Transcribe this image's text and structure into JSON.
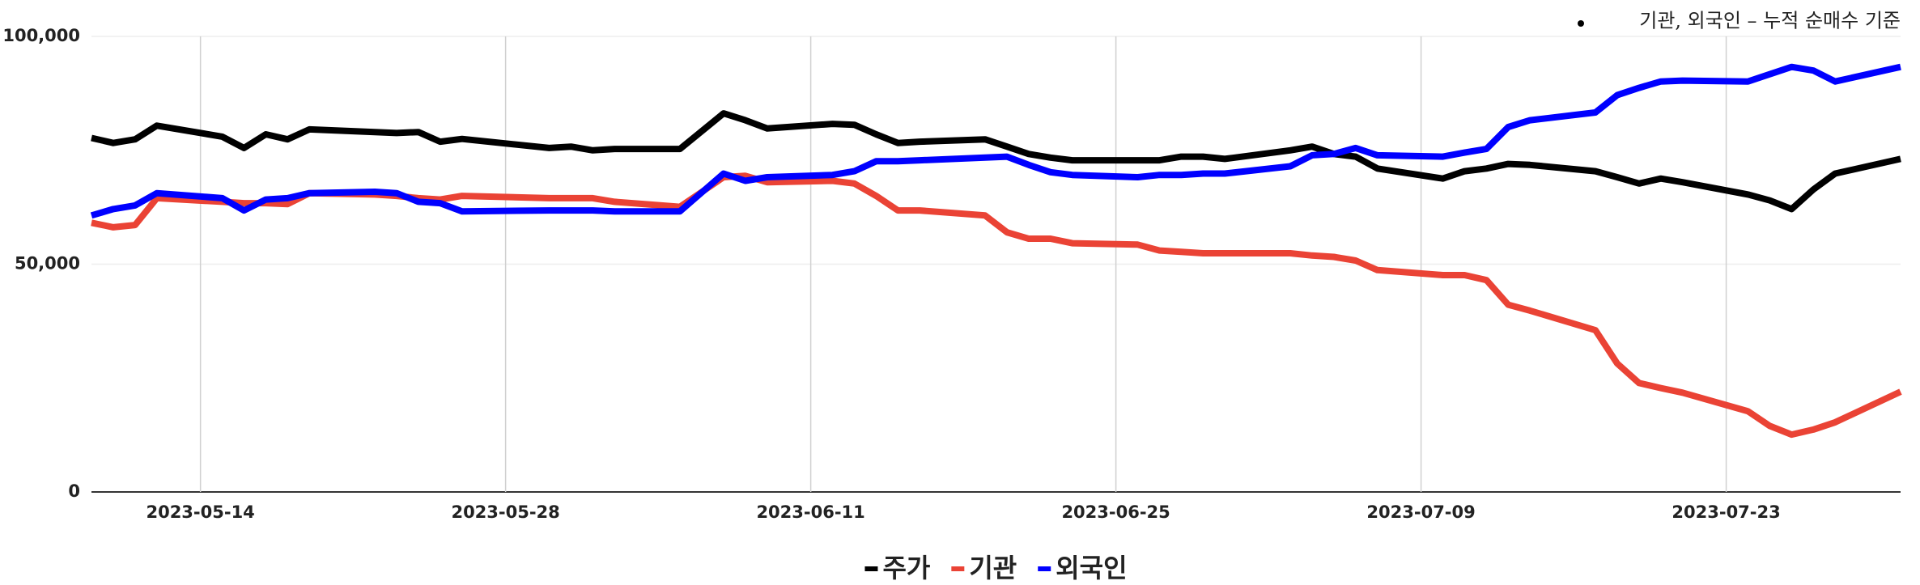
{
  "chart_data": {
    "type": "line",
    "annotation": "기관, 외국인 – 누적 순매수 기준",
    "x": [
      "2023-05-09",
      "2023-05-10",
      "2023-05-11",
      "2023-05-12",
      "2023-05-15",
      "2023-05-16",
      "2023-05-17",
      "2023-05-18",
      "2023-05-19",
      "2023-05-22",
      "2023-05-23",
      "2023-05-24",
      "2023-05-25",
      "2023-05-26",
      "2023-05-30",
      "2023-05-31",
      "2023-06-01",
      "2023-06-02",
      "2023-06-05",
      "2023-06-07",
      "2023-06-08",
      "2023-06-09",
      "2023-06-12",
      "2023-06-13",
      "2023-06-14",
      "2023-06-15",
      "2023-06-16",
      "2023-06-19",
      "2023-06-20",
      "2023-06-21",
      "2023-06-22",
      "2023-06-23",
      "2023-06-26",
      "2023-06-27",
      "2023-06-28",
      "2023-06-29",
      "2023-06-30",
      "2023-07-03",
      "2023-07-04",
      "2023-07-05",
      "2023-07-06",
      "2023-07-07",
      "2023-07-10",
      "2023-07-11",
      "2023-07-12",
      "2023-07-13",
      "2023-07-14",
      "2023-07-17",
      "2023-07-18",
      "2023-07-19",
      "2023-07-20",
      "2023-07-21",
      "2023-07-24",
      "2023-07-25",
      "2023-07-26",
      "2023-07-27",
      "2023-07-28",
      "2023-07-31"
    ],
    "series": [
      {
        "name": "주가",
        "color": "#000000",
        "values": [
          77700,
          76600,
          77400,
          80400,
          78000,
          75500,
          78500,
          77400,
          79600,
          79000,
          78800,
          79000,
          76900,
          77500,
          75500,
          75800,
          75000,
          75300,
          75300,
          83100,
          81600,
          79800,
          80800,
          80600,
          78500,
          76600,
          76900,
          77400,
          75800,
          74200,
          73400,
          72800,
          72800,
          72800,
          73600,
          73600,
          73100,
          75000,
          75800,
          74200,
          73600,
          71000,
          68800,
          70400,
          71000,
          72000,
          71800,
          70400,
          69100,
          67700,
          68800,
          68000,
          65300,
          64000,
          62100,
          66400,
          69900,
          73100
        ]
      },
      {
        "name": "기관",
        "color": "#ea4335",
        "values": [
          59100,
          58100,
          58600,
          64500,
          63700,
          63400,
          63400,
          63200,
          65600,
          65300,
          65000,
          64500,
          64200,
          65000,
          64500,
          64500,
          64500,
          63700,
          62600,
          69100,
          69400,
          68000,
          68300,
          67700,
          65000,
          61800,
          61800,
          60700,
          57000,
          55600,
          55600,
          54600,
          54300,
          53000,
          52700,
          52400,
          52400,
          52400,
          51900,
          51600,
          50800,
          48700,
          47600,
          47600,
          46500,
          41100,
          39800,
          35500,
          28200,
          23900,
          22800,
          21800,
          17700,
          14500,
          12600,
          13700,
          15300,
          22000
        ]
      },
      {
        "name": "외국인",
        "color": "#0000ff",
        "values": [
          60700,
          62100,
          62900,
          65600,
          64500,
          61800,
          64200,
          64500,
          65600,
          65900,
          65600,
          63700,
          63400,
          61600,
          61800,
          61800,
          61800,
          61600,
          61600,
          69900,
          68300,
          69100,
          69600,
          70400,
          72600,
          72600,
          72800,
          73400,
          73600,
          71800,
          70200,
          69600,
          69100,
          69600,
          69600,
          69900,
          69900,
          71500,
          73900,
          74200,
          75500,
          73900,
          73600,
          74500,
          75300,
          80100,
          81600,
          83300,
          87100,
          88700,
          90100,
          90300,
          90100,
          91700,
          93300,
          92500,
          90100,
          93300
        ]
      }
    ],
    "xlim": [
      "2023-05-09",
      "2023-07-31"
    ],
    "xticks": [
      "2023-05-14",
      "2023-05-28",
      "2023-06-11",
      "2023-06-25",
      "2023-07-09",
      "2023-07-23"
    ],
    "ylim": [
      0,
      100000
    ],
    "yticks": [
      0,
      {
        "value": 50000,
        "label": "50,000"
      },
      {
        "value": 100000,
        "label": "100,000"
      }
    ],
    "grid": true
  }
}
